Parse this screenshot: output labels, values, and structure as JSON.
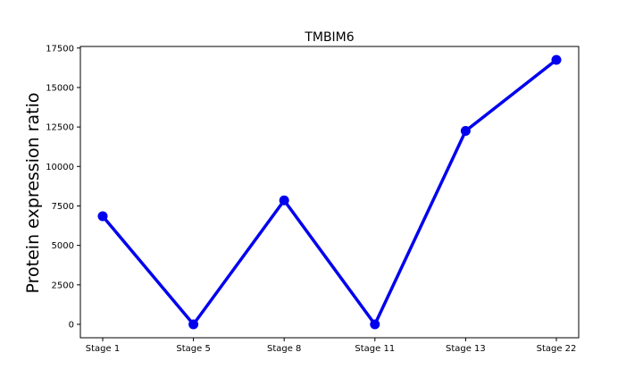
{
  "chart_data": {
    "type": "line",
    "title": "TMBIM6",
    "xlabel": "",
    "ylabel": "Protein expression ratio",
    "categories": [
      "Stage 1",
      "Stage 5",
      "Stage 8",
      "Stage 11",
      "Stage 13",
      "Stage 22"
    ],
    "series": [
      {
        "values": [
          6850,
          0,
          7850,
          0,
          12250,
          16750
        ],
        "color": "#0000ee"
      }
    ],
    "ylim": [
      -850,
      17600
    ],
    "yticks": [
      0,
      2500,
      5000,
      7500,
      10000,
      12500,
      15000,
      17500
    ],
    "ytick_labels": [
      "0",
      "2500",
      "5000",
      "7500",
      "10000",
      "12500",
      "15000",
      "17500"
    ],
    "grid": false,
    "legend": "none"
  }
}
